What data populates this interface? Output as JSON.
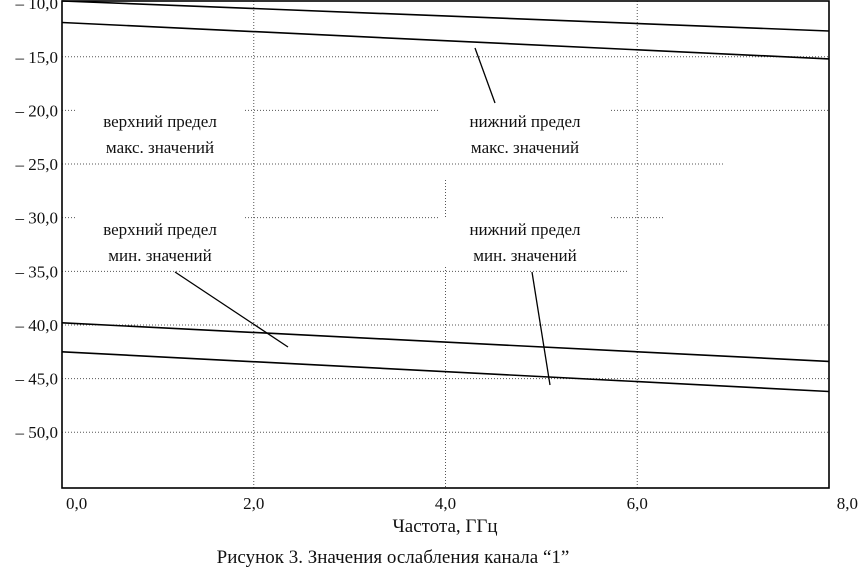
{
  "chart_data": {
    "type": "line",
    "xlabel": "Частота, ГГц",
    "ylabel": "",
    "caption": "Рисунок 3. Значения ослабления канала “1”",
    "x_ticks": [
      "0,0",
      "2,0",
      "4,0",
      "6,0",
      "8,0"
    ],
    "y_ticks": [
      "– 10,0",
      "– 15,0",
      "– 20,0",
      "– 25,0",
      "– 30,0",
      "– 35,0",
      "– 40,0",
      "– 45,0",
      "– 50,0"
    ],
    "xlim": [
      0,
      8
    ],
    "ylim": [
      -55.2,
      -9.8
    ],
    "grid": true,
    "series": [
      {
        "x": [
          0,
          8
        ],
        "y": [
          -9.8,
          -12.6
        ]
      },
      {
        "x": [
          0,
          8
        ],
        "y": [
          -11.8,
          -15.2
        ]
      },
      {
        "x": [
          0,
          8
        ],
        "y": [
          -39.8,
          -43.4
        ]
      },
      {
        "x": [
          0,
          8
        ],
        "y": [
          -42.5,
          -46.2
        ]
      }
    ],
    "annotations": [
      {
        "lines": [
          "верхний предел",
          "макс. значений"
        ]
      },
      {
        "lines": [
          "нижний предел",
          "макс. значений"
        ]
      },
      {
        "lines": [
          "верхний предел",
          "мин. значений"
        ]
      },
      {
        "lines": [
          "нижний предел",
          "мин. значений"
        ]
      }
    ]
  }
}
